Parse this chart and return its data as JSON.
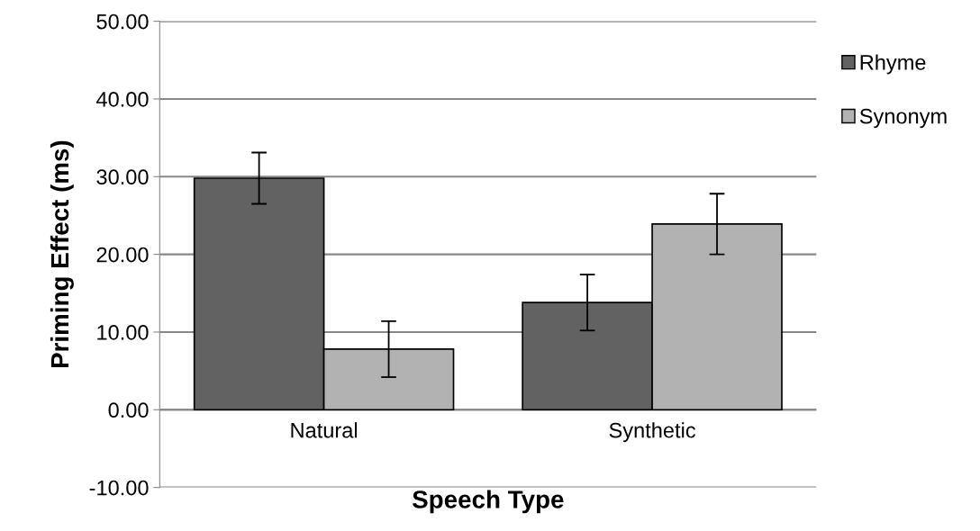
{
  "chart_data": {
    "type": "bar",
    "xlabel": "Speech Type",
    "ylabel": "Priming Effect (ms)",
    "categories": [
      "Natural",
      "Synthetic"
    ],
    "series": [
      {
        "name": "Rhyme",
        "color": "#626262",
        "values": [
          29.8,
          13.8
        ],
        "errors": [
          3.3,
          3.6
        ]
      },
      {
        "name": "Synonym",
        "color": "#b2b2b2",
        "values": [
          7.8,
          23.9
        ],
        "errors": [
          3.6,
          3.9
        ]
      }
    ],
    "ylim": [
      -10,
      50
    ],
    "yticks": [
      {
        "value": -10,
        "label": "-10.00"
      },
      {
        "value": 0,
        "label": "0.00"
      },
      {
        "value": 10,
        "label": "10.00"
      },
      {
        "value": 20,
        "label": "20.00"
      },
      {
        "value": 30,
        "label": "30.00"
      },
      {
        "value": 40,
        "label": "40.00"
      },
      {
        "value": 50,
        "label": "50.00"
      }
    ],
    "grid": "y",
    "legend": "right"
  }
}
